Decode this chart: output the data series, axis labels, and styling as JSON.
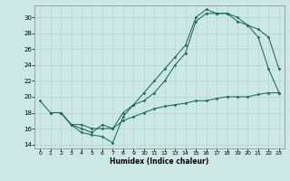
{
  "xlabel": "Humidex (Indice chaleur)",
  "bg_color": "#cce8e5",
  "grid_color": "#b8d8d5",
  "line_color": "#1a6b5a",
  "xlim": [
    -0.5,
    23.5
  ],
  "ylim": [
    13.5,
    31.5
  ],
  "xticks": [
    0,
    1,
    2,
    3,
    4,
    5,
    6,
    7,
    8,
    9,
    10,
    11,
    12,
    13,
    14,
    15,
    16,
    17,
    18,
    19,
    20,
    21,
    22,
    23
  ],
  "yticks": [
    14,
    16,
    18,
    20,
    22,
    24,
    26,
    28,
    30
  ],
  "line1_x": [
    0,
    1,
    2,
    3,
    4,
    5,
    6,
    7,
    8,
    9,
    10,
    11,
    12,
    13,
    14,
    15,
    16,
    17,
    18,
    19,
    20,
    21,
    22,
    23
  ],
  "line1_y": [
    19.5,
    18.0,
    18.0,
    16.5,
    15.5,
    15.2,
    15.0,
    14.2,
    17.5,
    19.0,
    19.5,
    20.5,
    22.0,
    24.0,
    25.5,
    29.5,
    30.5,
    30.5,
    30.5,
    30.0,
    29.0,
    27.5,
    23.5,
    20.5
  ],
  "line2_x": [
    1,
    2,
    3,
    4,
    5,
    6,
    7,
    8,
    9,
    10,
    11,
    12,
    13,
    14,
    15,
    16,
    17,
    18,
    19,
    20,
    21,
    22,
    23
  ],
  "line2_y": [
    18.0,
    18.0,
    16.5,
    16.0,
    15.5,
    16.5,
    16.0,
    18.0,
    19.0,
    20.5,
    22.0,
    23.5,
    25.0,
    26.5,
    30.0,
    31.0,
    30.5,
    30.5,
    29.5,
    29.0,
    28.5,
    27.5,
    23.5
  ],
  "line3_x": [
    1,
    2,
    3,
    4,
    5,
    6,
    7,
    8,
    9,
    10,
    11,
    12,
    13,
    14,
    15,
    16,
    17,
    18,
    19,
    20,
    21,
    22,
    23
  ],
  "line3_y": [
    18.0,
    18.0,
    16.5,
    16.5,
    16.0,
    16.0,
    16.0,
    17.0,
    17.5,
    18.0,
    18.5,
    18.8,
    19.0,
    19.2,
    19.5,
    19.5,
    19.8,
    20.0,
    20.0,
    20.0,
    20.3,
    20.5,
    20.5
  ]
}
